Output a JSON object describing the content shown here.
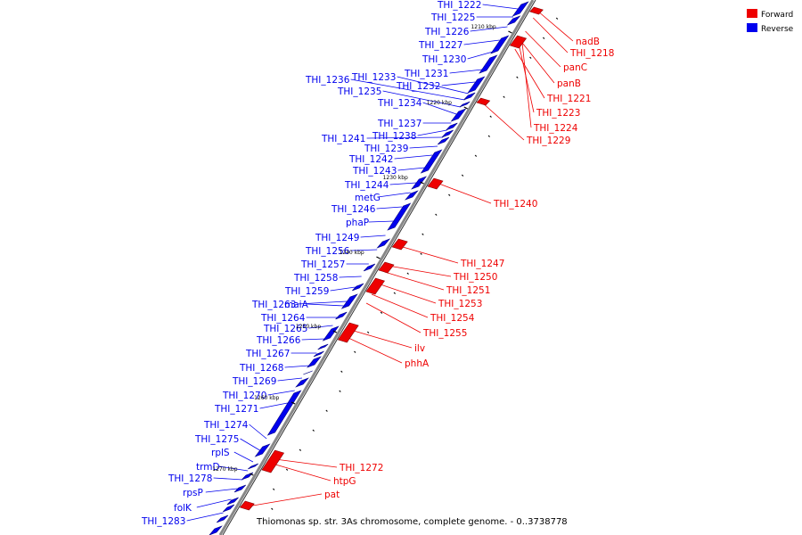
{
  "colors": {
    "forward": "#ee0000",
    "reverse": "#0000ee",
    "backbone": "#888888"
  },
  "legend": {
    "forward_label": "Forward",
    "reverse_label": "Reverse"
  },
  "title": "Thiomonas sp. str. 3As chromosome, complete genome. - 0..3738778",
  "kbp_marks": [
    "1210 kbp",
    "1220 kbp",
    "1230 kbp",
    "1240 kbp",
    "1250 kbp",
    "1260 kbp",
    "1270 kbp"
  ],
  "reverse_genes": [
    "THI_1222",
    "THI_1225",
    "THI_1226",
    "THI_1227",
    "THI_1230",
    "THI_1231",
    "THI_1232",
    "THI_1233",
    "THI_1236",
    "THI_1235",
    "THI_1234",
    "THI_1237",
    "THI_1238",
    "THI_1241",
    "THI_1239",
    "THI_1242",
    "THI_1243",
    "THI_1244",
    "metG",
    "THI_1246",
    "phaP",
    "THI_1249",
    "THI_1256",
    "THI_1257",
    "THI_1258",
    "THI_1259",
    "THI_1263",
    "maiA",
    "THI_1264",
    "THI_1265",
    "THI_1266",
    "THI_1267",
    "THI_1268",
    "THI_1269",
    "THI_1270",
    "THI_1271",
    "THI_1274",
    "THI_1275",
    "rplS",
    "trmD",
    "THI_1278",
    "rpsP",
    "folK",
    "THI_1283"
  ],
  "forward_genes": [
    "nadB",
    "THI_1218",
    "panC",
    "panB",
    "THI_1221",
    "THI_1223",
    "THI_1224",
    "THI_1229",
    "THI_1240",
    "THI_1247",
    "THI_1250",
    "THI_1251",
    "THI_1253",
    "THI_1254",
    "THI_1255",
    "ilv",
    "phhA",
    "THI_1272",
    "htpG",
    "pat"
  ]
}
